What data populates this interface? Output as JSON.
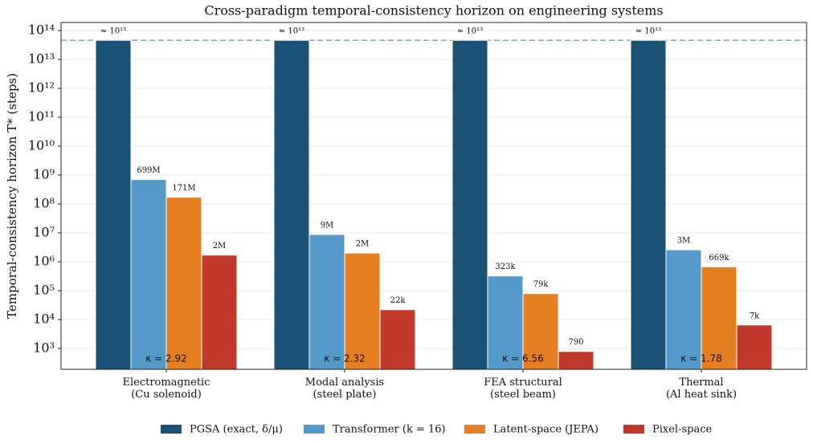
{
  "chart_data": {
    "type": "bar",
    "title": "Cross-paradigm temporal-consistency horizon on engineering systems",
    "y_label": "Temporal-consistency horizon T* (steps)",
    "categories": [
      "Electromagnetic\n(Cu solenoid)",
      "Modal analysis\n(steel plate)",
      "FEA structural\n(steel beam)",
      "Thermal\n(Al heat sink)"
    ],
    "series": [
      {
        "name": "PGSA (exact, δ/μ)",
        "color": "#1a5276",
        "values": [
          46000000000000,
          46000000000000,
          46000000000000,
          46000000000000
        ],
        "value_labels": [
          "≈ 10¹³",
          "≈ 10¹³",
          "≈ 10¹³",
          "≈ 10¹³"
        ]
      },
      {
        "name": "Transformer (k = 16)",
        "color": "#5499c7",
        "values": [
          699000000,
          8800000,
          323000,
          2600000
        ],
        "value_labels": [
          "699M",
          "9M",
          "323k",
          "3M"
        ]
      },
      {
        "name": "Latent-space (JEPA)",
        "color": "#e67e22",
        "values": [
          171000000,
          2000000,
          79000,
          669000
        ],
        "value_labels": [
          "171M",
          "2M",
          "79k",
          "669k"
        ]
      },
      {
        "name": "Pixel-space",
        "color": "#c0392b",
        "values": [
          1700000,
          22000,
          790,
          6500
        ],
        "value_labels": [
          "2M",
          "22k",
          "790",
          "7k"
        ]
      }
    ],
    "annotations": [
      "κ = 2.92",
      "κ = 2.32",
      "κ = 6.56",
      "κ = 1.78"
    ],
    "ylim": [
      190,
      190000000000000
    ],
    "log_scale": true,
    "grid": true,
    "legend": "bottom",
    "yticks": [
      {
        "value": 1000,
        "label": "10³"
      },
      {
        "value": 10000,
        "label": "10⁴"
      },
      {
        "value": 100000,
        "label": "10⁵"
      },
      {
        "value": 1000000,
        "label": "10⁶"
      },
      {
        "value": 10000000,
        "label": "10⁷"
      },
      {
        "value": 100000000,
        "label": "10⁸"
      },
      {
        "value": 1000000000,
        "label": "10⁹"
      },
      {
        "value": 10000000000,
        "label": "10¹⁰"
      },
      {
        "value": 100000000000,
        "label": "10¹¹"
      },
      {
        "value": 1000000000000,
        "label": "10¹²"
      },
      {
        "value": 10000000000000,
        "label": "10¹³"
      },
      {
        "value": 100000000000000,
        "label": "10¹⁴"
      }
    ]
  }
}
